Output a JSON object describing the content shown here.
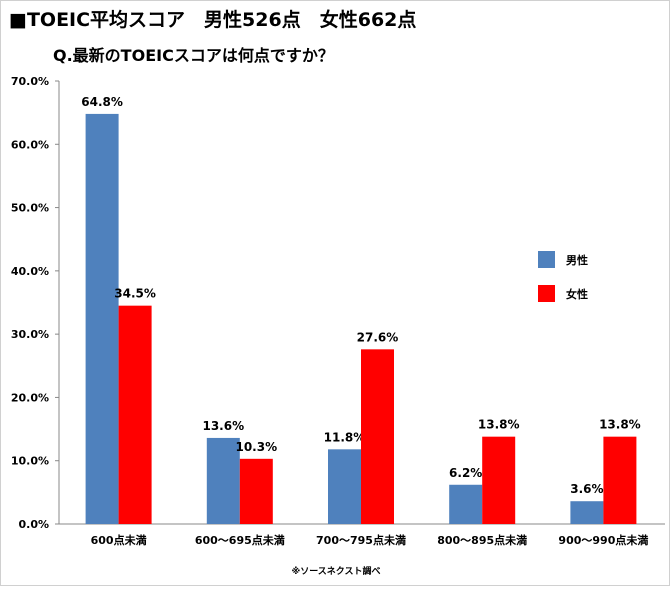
{
  "chart_data": {
    "type": "bar",
    "title": "■TOEIC平均スコア　男性526点　女性662点",
    "subtitle": "Q.最新のTOEICスコアは何点ですか？",
    "categories": [
      "600点未満",
      "600〜695点未満",
      "700〜795点未満",
      "800〜895点未満",
      "900〜990点未満"
    ],
    "series": [
      {
        "name": "男性",
        "values": [
          64.8,
          13.6,
          11.8,
          6.2,
          3.6
        ],
        "labels": [
          "64.8%",
          "13.6%",
          "11.8%",
          "6.2%",
          "3.6%"
        ],
        "color": "#4f81bd"
      },
      {
        "name": "女性",
        "values": [
          34.5,
          10.3,
          27.6,
          13.8,
          13.8
        ],
        "labels": [
          "34.5%",
          "10.3%",
          "27.6%",
          "13.8%",
          "13.8%"
        ],
        "color": "#ff0000"
      }
    ],
    "yticks": [
      "0.0%",
      "10.0%",
      "20.0%",
      "30.0%",
      "40.0%",
      "50.0%",
      "60.0%",
      "70.0%"
    ],
    "ylim": [
      0,
      70
    ],
    "grid": false,
    "legend": "right",
    "source_note": "※ソースネクスト調べ"
  }
}
